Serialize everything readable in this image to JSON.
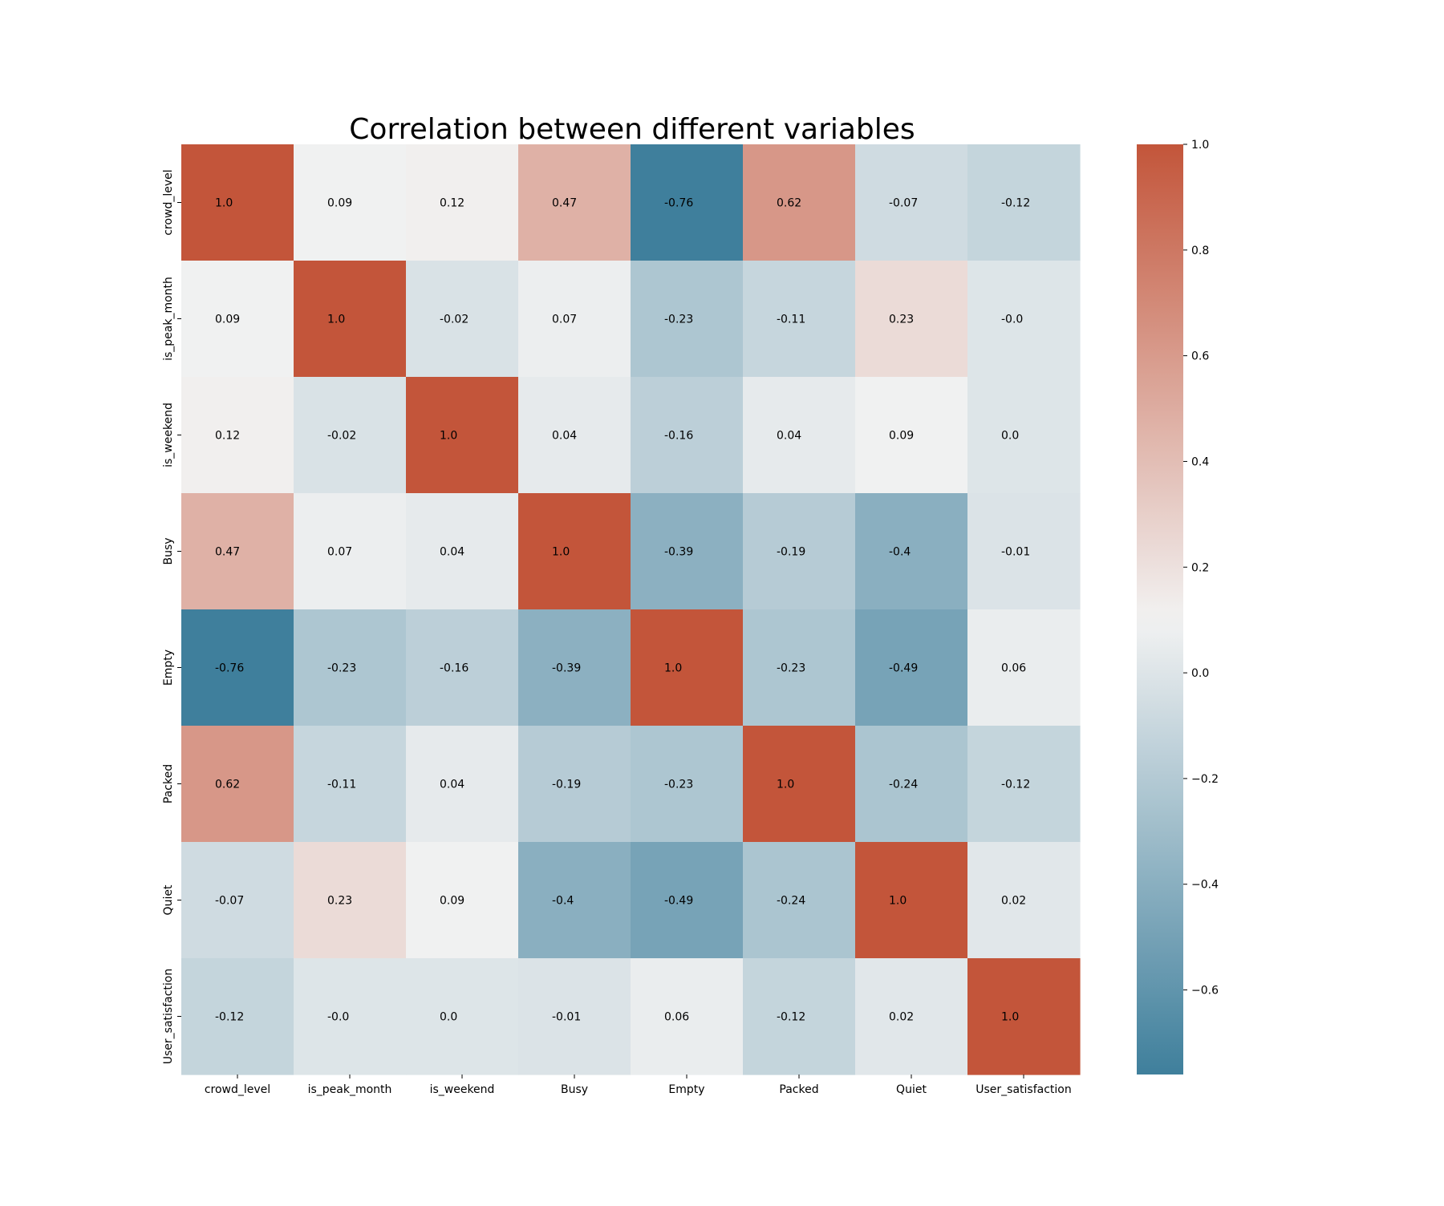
{
  "chart_data": {
    "type": "heatmap",
    "title": "Correlation between different variables",
    "xlabel": "",
    "ylabel": "",
    "variables": [
      "crowd_level",
      "is_peak_month",
      "is_weekend",
      "Busy",
      "Empty",
      "Packed",
      "Quiet",
      "User_satisfaction"
    ],
    "matrix": [
      [
        1.0,
        0.09,
        0.12,
        0.47,
        -0.76,
        0.62,
        -0.07,
        -0.12
      ],
      [
        0.09,
        1.0,
        -0.02,
        0.07,
        -0.23,
        -0.11,
        0.23,
        -0.0
      ],
      [
        0.12,
        -0.02,
        1.0,
        0.04,
        -0.16,
        0.04,
        0.09,
        0.0
      ],
      [
        0.47,
        0.07,
        0.04,
        1.0,
        -0.39,
        -0.19,
        -0.4,
        -0.01
      ],
      [
        -0.76,
        -0.23,
        -0.16,
        -0.39,
        1.0,
        -0.23,
        -0.49,
        0.06
      ],
      [
        0.62,
        -0.11,
        0.04,
        -0.19,
        -0.23,
        1.0,
        -0.24,
        -0.12
      ],
      [
        -0.07,
        0.23,
        0.09,
        -0.4,
        -0.49,
        -0.24,
        1.0,
        0.02
      ],
      [
        -0.12,
        -0.0,
        0.0,
        -0.01,
        0.06,
        -0.12,
        0.02,
        1.0
      ]
    ],
    "cell_labels": [
      [
        "1.0",
        "0.09",
        "0.12",
        "0.47",
        "-0.76",
        "0.62",
        "-0.07",
        "-0.12"
      ],
      [
        "0.09",
        "1.0",
        "-0.02",
        "0.07",
        "-0.23",
        "-0.11",
        "0.23",
        "-0.0"
      ],
      [
        "0.12",
        "-0.02",
        "1.0",
        "0.04",
        "-0.16",
        "0.04",
        "0.09",
        "0.0"
      ],
      [
        "0.47",
        "0.07",
        "0.04",
        "1.0",
        "-0.39",
        "-0.19",
        "-0.4",
        "-0.01"
      ],
      [
        "-0.76",
        "-0.23",
        "-0.16",
        "-0.39",
        "1.0",
        "-0.23",
        "-0.49",
        "0.06"
      ],
      [
        "0.62",
        "-0.11",
        "0.04",
        "-0.19",
        "-0.23",
        "1.0",
        "-0.24",
        "-0.12"
      ],
      [
        "-0.07",
        "0.23",
        "0.09",
        "-0.4",
        "-0.49",
        "-0.24",
        "1.0",
        "0.02"
      ],
      [
        "-0.12",
        "-0.0",
        "0.0",
        "-0.01",
        "0.06",
        "-0.12",
        "0.02",
        "1.0"
      ]
    ],
    "colorbar": {
      "range": [
        -0.76,
        1.0
      ],
      "ticks": [
        1.0,
        0.8,
        0.6,
        0.4,
        0.2,
        0.0,
        -0.2,
        -0.4,
        -0.6
      ],
      "tick_labels": [
        "1.0",
        "0.8",
        "0.6",
        "0.4",
        "0.2",
        "0.0",
        "−0.2",
        "−0.4",
        "−0.6"
      ],
      "center": 0.1,
      "color_low": "#3f7f9c",
      "color_mid": "#f2f2f2",
      "color_high": "#c3553a"
    },
    "grid": false,
    "legend": "colorbar-right"
  }
}
